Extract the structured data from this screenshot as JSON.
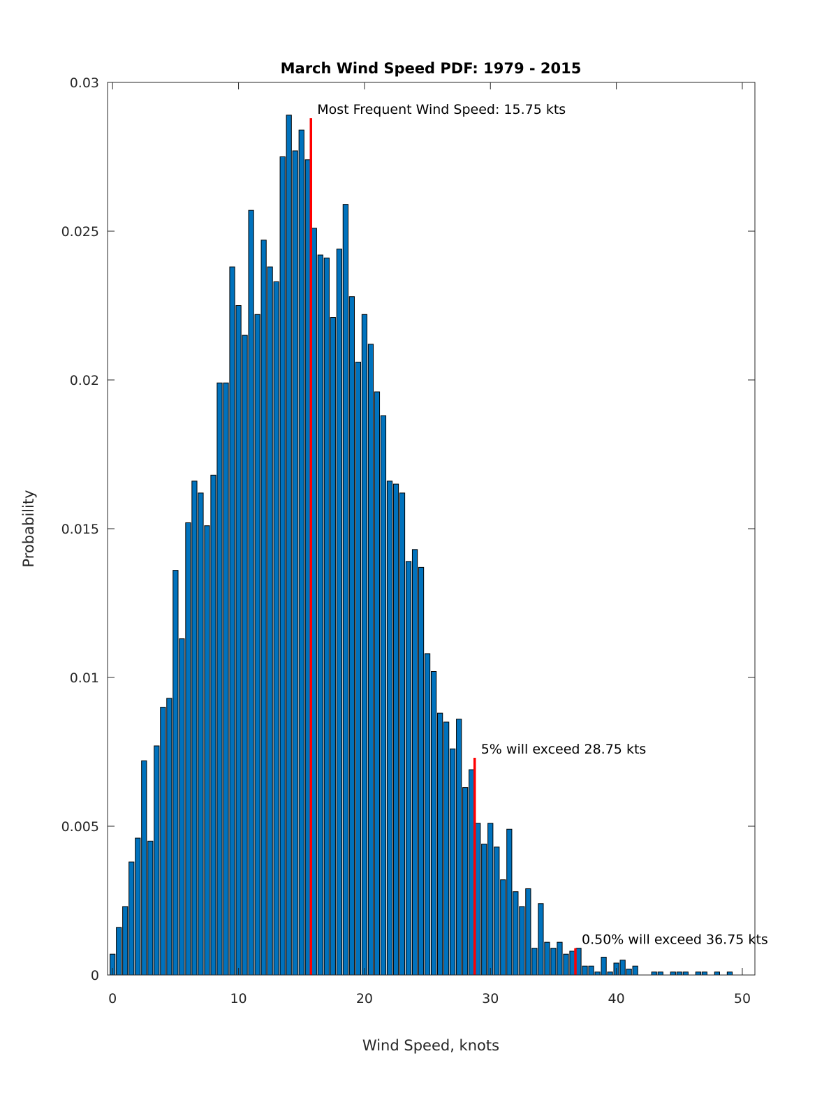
{
  "chart_data": {
    "type": "bar",
    "title": "March Wind Speed PDF: 1979 - 2015",
    "xlabel": "Wind Speed, knots",
    "ylabel": "Probability",
    "xlim": [
      -0.4,
      51
    ],
    "ylim": [
      0,
      0.03
    ],
    "xticks": [
      0,
      10,
      20,
      30,
      40,
      50
    ],
    "xtick_labels": [
      "0",
      "10",
      "20",
      "30",
      "40",
      "50"
    ],
    "yticks": [
      0,
      0.005,
      0.01,
      0.015,
      0.02,
      0.025,
      0.03
    ],
    "ytick_labels": [
      "0",
      "0.005",
      "0.01",
      "0.015",
      "0.02",
      "0.025",
      "0.03"
    ],
    "bar_width": 0.5,
    "bar_color": "#0072BD",
    "marker_color": "#FF0000",
    "x_start": 0,
    "x_step": 0.5,
    "values": [
      0.0007,
      0.0016,
      0.0023,
      0.0038,
      0.0046,
      0.0072,
      0.0045,
      0.0077,
      0.009,
      0.0093,
      0.0136,
      0.0113,
      0.0152,
      0.0166,
      0.0162,
      0.0151,
      0.0168,
      0.0199,
      0.0199,
      0.0238,
      0.0225,
      0.0215,
      0.0257,
      0.0222,
      0.0247,
      0.0238,
      0.0233,
      0.0275,
      0.0289,
      0.0277,
      0.0284,
      0.0274,
      0.0251,
      0.0242,
      0.0241,
      0.0221,
      0.0244,
      0.0259,
      0.0228,
      0.0206,
      0.0222,
      0.0212,
      0.0196,
      0.0188,
      0.0166,
      0.0165,
      0.0162,
      0.0139,
      0.0143,
      0.0137,
      0.0108,
      0.0102,
      0.0088,
      0.0085,
      0.0076,
      0.0086,
      0.0063,
      0.0069,
      0.0051,
      0.0044,
      0.0051,
      0.0043,
      0.0032,
      0.0049,
      0.0028,
      0.0023,
      0.0029,
      0.0009,
      0.0024,
      0.0011,
      0.0009,
      0.0011,
      0.0007,
      0.0008,
      0.0009,
      0.0003,
      0.0003,
      0.0001,
      0.0006,
      0.0001,
      0.0004,
      0.0005,
      0.0002,
      0.0003,
      0,
      0,
      0.0001,
      0.0001,
      0,
      0.0001,
      0.0001,
      0.0001,
      0,
      0.0001,
      0.0001,
      0,
      0.0001,
      0,
      0.0001
    ],
    "annotations": [
      {
        "text": "Most Frequent Wind Speed: 15.75 kts",
        "x": 15.75,
        "y_top": 0.0288
      },
      {
        "text": "5% will exceed 28.75 kts",
        "x": 28.75,
        "y_top": 0.0073
      },
      {
        "text": "0.50% will exceed 36.75 kts",
        "x": 36.75,
        "y_top": 0.0009
      }
    ]
  }
}
